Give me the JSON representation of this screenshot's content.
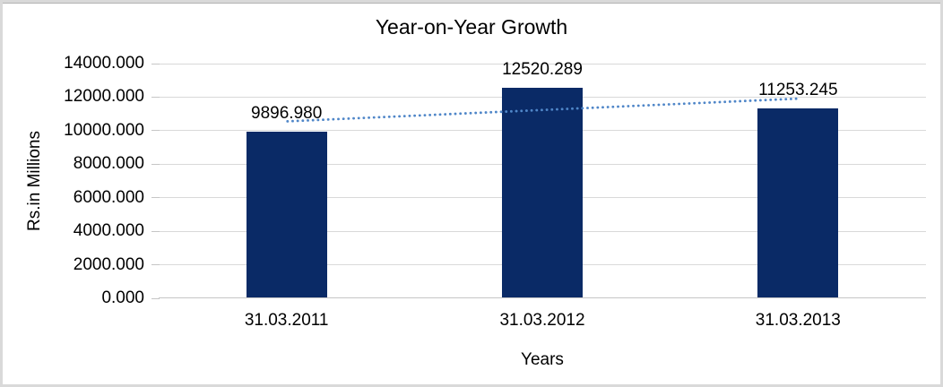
{
  "chart_data": {
    "type": "bar",
    "title": "Year-on-Year Growth",
    "xlabel": "Years",
    "ylabel": "Rs.in Millions",
    "categories": [
      "31.03.2011",
      "31.03.2012",
      "31.03.2013"
    ],
    "values": [
      9896.98,
      12520.289,
      11253.245
    ],
    "data_labels": [
      "9896.980",
      "12520.289",
      "11253.245"
    ],
    "ylim": [
      0,
      14000
    ],
    "ytick_step": 2000,
    "ytick_labels": [
      "0.000",
      "2000.000",
      "4000.000",
      "6000.000",
      "8000.000",
      "10000.000",
      "12000.000",
      "14000.000"
    ],
    "grid": true,
    "legend": "none",
    "bar_color": "#0a2a66",
    "trendline": {
      "type": "linear",
      "style": "dotted",
      "color": "#4f86c8",
      "endpoint_values": [
        10545.39,
        11901.64
      ]
    },
    "gridline_color": "#d9d9d9",
    "axis_line_color": "#c6c6c6",
    "frame_border_color": "#d9d9d9",
    "background_color": "#ffffff"
  }
}
